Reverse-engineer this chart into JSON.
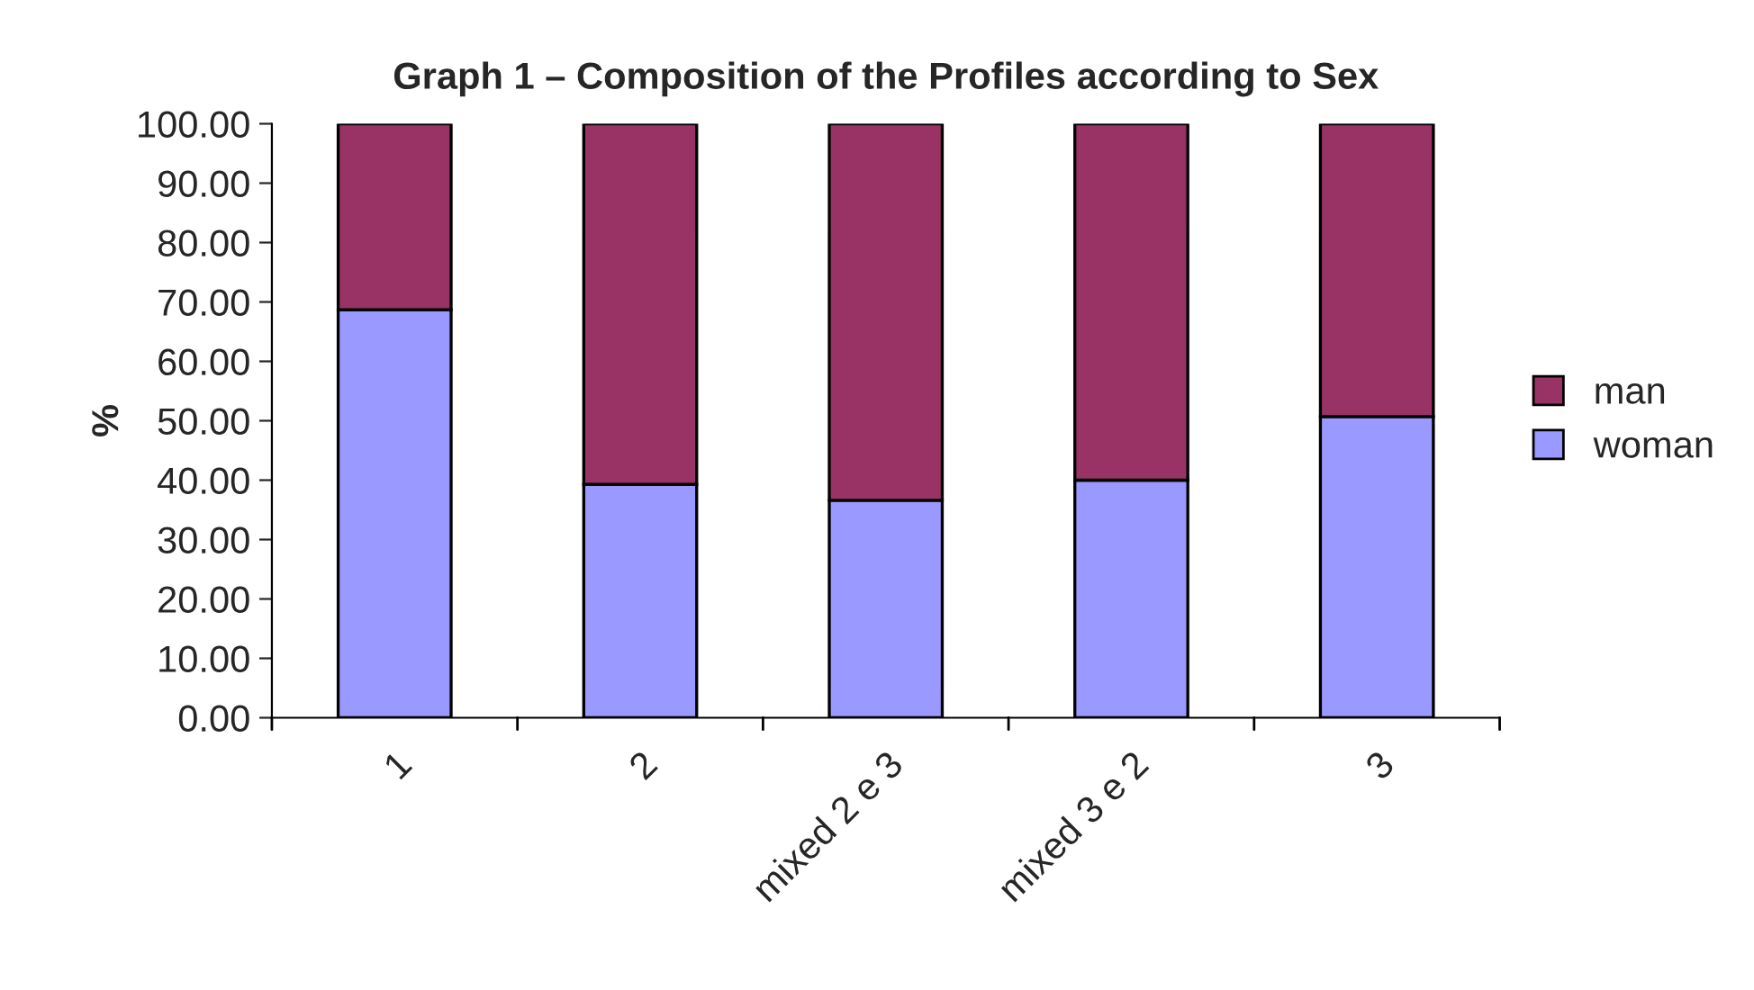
{
  "chart_data": {
    "type": "bar",
    "stacked": true,
    "title": "Graph 1 – Composition of the Profiles according to Sex",
    "ylabel": "%",
    "categories": [
      "1",
      "2",
      "mixed 2 e 3",
      "mixed 3 e 2",
      "3"
    ],
    "series": [
      {
        "name": "woman",
        "color": "#9999ff",
        "values": [
          68.7,
          39.3,
          36.6,
          40.0,
          50.7
        ]
      },
      {
        "name": "man",
        "color": "#993366",
        "values": [
          31.3,
          60.7,
          63.4,
          60.0,
          49.3
        ]
      }
    ],
    "ylim": [
      0,
      100
    ],
    "yticks": [
      {
        "value": 0,
        "label": "0.00"
      },
      {
        "value": 10,
        "label": "10.00"
      },
      {
        "value": 20,
        "label": "20.00"
      },
      {
        "value": 30,
        "label": "30.00"
      },
      {
        "value": 40,
        "label": "40.00"
      },
      {
        "value": 50,
        "label": "50.00"
      },
      {
        "value": 60,
        "label": "60.00"
      },
      {
        "value": 70,
        "label": "70.00"
      },
      {
        "value": 80,
        "label": "80.00"
      },
      {
        "value": 90,
        "label": "90.00"
      },
      {
        "value": 100,
        "label": "100.00"
      }
    ],
    "grid": false,
    "legend": "right"
  }
}
